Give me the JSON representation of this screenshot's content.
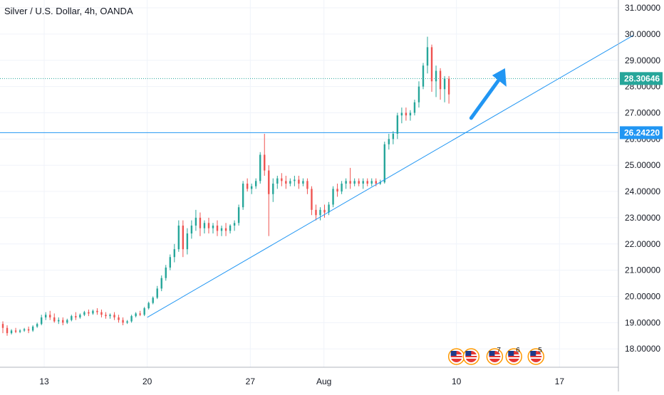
{
  "chart_data": {
    "type": "candlestick",
    "title": "Silver / U.S. Dollar, 4h, OANDA",
    "x_tick_labels": [
      "13",
      "20",
      "27",
      "Aug",
      "10",
      "17"
    ],
    "y_tick_labels": [
      "18.00000",
      "19.00000",
      "20.00000",
      "21.00000",
      "22.00000",
      "23.00000",
      "24.00000",
      "25.00000",
      "26.00000",
      "27.00000",
      "28.00000",
      "29.00000",
      "30.00000",
      "31.00000"
    ],
    "ylim": [
      17.3,
      31.3
    ],
    "x_range": [
      "Jul 10",
      "Aug 22"
    ],
    "price_label": "28.30646",
    "price_label_value": 28.30646,
    "level_label": "26.24220",
    "level_value": 26.2422,
    "trendline": {
      "start": {
        "date": "Jul 20",
        "price": 19.2
      },
      "end": {
        "date": "Aug 22",
        "price": 29.95
      }
    },
    "arrow": {
      "from": {
        "date": "Aug 11",
        "price": 26.8
      },
      "to": {
        "date": "Aug 13.3",
        "price": 28.7
      }
    },
    "event_markers": [
      {
        "label": "",
        "date": "Aug 10"
      },
      {
        "label": "",
        "date": "Aug 11"
      },
      {
        "label": "7",
        "date": "Aug 12.6"
      },
      {
        "label": "6",
        "date": "Aug 13.9"
      },
      {
        "label": "5",
        "date": "Aug 15.4"
      }
    ],
    "candles": [
      {
        "o": 18.95,
        "h": 19.05,
        "c": 18.8,
        "l": 18.6
      },
      {
        "o": 18.8,
        "h": 18.9,
        "c": 18.6,
        "l": 18.5
      },
      {
        "o": 18.6,
        "h": 18.75,
        "c": 18.7,
        "l": 18.55
      },
      {
        "o": 18.7,
        "h": 18.8,
        "c": 18.65,
        "l": 18.6
      },
      {
        "o": 18.65,
        "h": 18.75,
        "c": 18.7,
        "l": 18.6
      },
      {
        "o": 18.7,
        "h": 18.8,
        "c": 18.75,
        "l": 18.65
      },
      {
        "o": 18.75,
        "h": 18.85,
        "c": 18.7,
        "l": 18.6
      },
      {
        "o": 18.7,
        "h": 18.9,
        "c": 18.85,
        "l": 18.65
      },
      {
        "o": 18.85,
        "h": 19.0,
        "c": 18.95,
        "l": 18.8
      },
      {
        "o": 18.95,
        "h": 19.3,
        "c": 19.2,
        "l": 18.9
      },
      {
        "o": 19.2,
        "h": 19.4,
        "c": 19.3,
        "l": 19.1
      },
      {
        "o": 19.3,
        "h": 19.45,
        "c": 19.2,
        "l": 19.1
      },
      {
        "o": 19.2,
        "h": 19.35,
        "c": 19.05,
        "l": 19.0
      },
      {
        "o": 19.05,
        "h": 19.2,
        "c": 19.1,
        "l": 18.95
      },
      {
        "o": 19.1,
        "h": 19.2,
        "c": 19.0,
        "l": 18.9
      },
      {
        "o": 19.0,
        "h": 19.15,
        "c": 19.1,
        "l": 18.95
      },
      {
        "o": 19.1,
        "h": 19.3,
        "c": 19.25,
        "l": 19.05
      },
      {
        "o": 19.25,
        "h": 19.4,
        "c": 19.2,
        "l": 19.1
      },
      {
        "o": 19.2,
        "h": 19.35,
        "c": 19.3,
        "l": 19.15
      },
      {
        "o": 19.3,
        "h": 19.45,
        "c": 19.4,
        "l": 19.25
      },
      {
        "o": 19.4,
        "h": 19.5,
        "c": 19.35,
        "l": 19.25
      },
      {
        "o": 19.35,
        "h": 19.5,
        "c": 19.45,
        "l": 19.3
      },
      {
        "o": 19.45,
        "h": 19.55,
        "c": 19.4,
        "l": 19.3
      },
      {
        "o": 19.4,
        "h": 19.5,
        "c": 19.3,
        "l": 19.2
      },
      {
        "o": 19.3,
        "h": 19.4,
        "c": 19.25,
        "l": 19.15
      },
      {
        "o": 19.25,
        "h": 19.35,
        "c": 19.3,
        "l": 19.15
      },
      {
        "o": 19.3,
        "h": 19.4,
        "c": 19.2,
        "l": 19.1
      },
      {
        "o": 19.2,
        "h": 19.3,
        "c": 19.1,
        "l": 19.0
      },
      {
        "o": 19.1,
        "h": 19.2,
        "c": 19.0,
        "l": 18.9
      },
      {
        "o": 19.0,
        "h": 19.1,
        "c": 19.05,
        "l": 18.95
      },
      {
        "o": 19.05,
        "h": 19.3,
        "c": 19.25,
        "l": 19.0
      },
      {
        "o": 19.25,
        "h": 19.4,
        "c": 19.35,
        "l": 19.2
      },
      {
        "o": 19.35,
        "h": 19.45,
        "c": 19.3,
        "l": 19.25
      },
      {
        "o": 19.3,
        "h": 19.6,
        "c": 19.55,
        "l": 19.25
      },
      {
        "o": 19.55,
        "h": 19.8,
        "c": 19.75,
        "l": 19.5
      },
      {
        "o": 19.75,
        "h": 20.0,
        "c": 19.95,
        "l": 19.7
      },
      {
        "o": 19.95,
        "h": 20.4,
        "c": 20.3,
        "l": 19.9
      },
      {
        "o": 20.3,
        "h": 20.8,
        "c": 20.7,
        "l": 20.2
      },
      {
        "o": 20.7,
        "h": 21.2,
        "c": 21.1,
        "l": 20.6
      },
      {
        "o": 21.1,
        "h": 21.6,
        "c": 21.5,
        "l": 21.0
      },
      {
        "o": 21.5,
        "h": 22.0,
        "c": 21.8,
        "l": 21.3
      },
      {
        "o": 21.8,
        "h": 22.9,
        "c": 22.7,
        "l": 21.7
      },
      {
        "o": 22.7,
        "h": 22.9,
        "c": 21.8,
        "l": 21.5
      },
      {
        "o": 21.8,
        "h": 22.6,
        "c": 22.4,
        "l": 21.6
      },
      {
        "o": 22.4,
        "h": 22.9,
        "c": 22.7,
        "l": 22.2
      },
      {
        "o": 22.7,
        "h": 23.3,
        "c": 23.0,
        "l": 22.5
      },
      {
        "o": 23.0,
        "h": 23.2,
        "c": 22.6,
        "l": 22.3
      },
      {
        "o": 22.6,
        "h": 22.9,
        "c": 22.8,
        "l": 22.4
      },
      {
        "o": 22.8,
        "h": 23.0,
        "c": 22.6,
        "l": 22.4
      },
      {
        "o": 22.6,
        "h": 22.8,
        "c": 22.7,
        "l": 22.4
      },
      {
        "o": 22.7,
        "h": 22.9,
        "c": 22.5,
        "l": 22.3
      },
      {
        "o": 22.5,
        "h": 22.7,
        "c": 22.6,
        "l": 22.3
      },
      {
        "o": 22.6,
        "h": 22.8,
        "c": 22.5,
        "l": 22.3
      },
      {
        "o": 22.5,
        "h": 22.75,
        "c": 22.7,
        "l": 22.4
      },
      {
        "o": 22.7,
        "h": 22.9,
        "c": 22.8,
        "l": 22.5
      },
      {
        "o": 22.8,
        "h": 23.5,
        "c": 23.4,
        "l": 22.7
      },
      {
        "o": 23.4,
        "h": 24.4,
        "c": 24.3,
        "l": 23.3
      },
      {
        "o": 24.3,
        "h": 24.5,
        "c": 24.1,
        "l": 24.0
      },
      {
        "o": 24.1,
        "h": 24.3,
        "c": 24.2,
        "l": 23.9
      },
      {
        "o": 24.2,
        "h": 24.5,
        "c": 24.4,
        "l": 24.1
      },
      {
        "o": 24.4,
        "h": 25.5,
        "c": 25.4,
        "l": 24.3
      },
      {
        "o": 25.4,
        "h": 26.2,
        "c": 24.8,
        "l": 24.6
      },
      {
        "o": 24.8,
        "h": 25.0,
        "c": 23.9,
        "l": 22.3
      },
      {
        "o": 23.9,
        "h": 24.5,
        "c": 24.3,
        "l": 23.6
      },
      {
        "o": 24.3,
        "h": 24.6,
        "c": 24.5,
        "l": 24.1
      },
      {
        "o": 24.5,
        "h": 24.7,
        "c": 24.4,
        "l": 24.2
      },
      {
        "o": 24.4,
        "h": 24.6,
        "c": 24.3,
        "l": 24.1
      },
      {
        "o": 24.3,
        "h": 24.5,
        "c": 24.4,
        "l": 24.2
      },
      {
        "o": 24.4,
        "h": 24.6,
        "c": 24.45,
        "l": 24.2
      },
      {
        "o": 24.45,
        "h": 24.6,
        "c": 24.3,
        "l": 24.1
      },
      {
        "o": 24.3,
        "h": 24.5,
        "c": 24.4,
        "l": 24.2
      },
      {
        "o": 24.4,
        "h": 24.5,
        "c": 24.1,
        "l": 23.9
      },
      {
        "o": 24.1,
        "h": 24.2,
        "c": 23.3,
        "l": 23.1
      },
      {
        "o": 23.3,
        "h": 23.5,
        "c": 23.1,
        "l": 22.9
      },
      {
        "o": 23.1,
        "h": 23.4,
        "c": 23.3,
        "l": 22.9
      },
      {
        "o": 23.3,
        "h": 23.5,
        "c": 23.2,
        "l": 23.0
      },
      {
        "o": 23.2,
        "h": 23.6,
        "c": 23.5,
        "l": 23.1
      },
      {
        "o": 23.5,
        "h": 24.2,
        "c": 24.1,
        "l": 23.4
      },
      {
        "o": 24.1,
        "h": 24.3,
        "c": 24.0,
        "l": 23.8
      },
      {
        "o": 24.0,
        "h": 24.4,
        "c": 24.3,
        "l": 23.9
      },
      {
        "o": 24.3,
        "h": 24.5,
        "c": 24.4,
        "l": 24.1
      },
      {
        "o": 24.4,
        "h": 24.9,
        "c": 24.3,
        "l": 24.1
      },
      {
        "o": 24.3,
        "h": 24.5,
        "c": 24.4,
        "l": 24.2
      },
      {
        "o": 24.4,
        "h": 24.5,
        "c": 24.3,
        "l": 24.2
      },
      {
        "o": 24.3,
        "h": 24.5,
        "c": 24.4,
        "l": 24.1
      },
      {
        "o": 24.4,
        "h": 24.5,
        "c": 24.3,
        "l": 24.2
      },
      {
        "o": 24.3,
        "h": 24.5,
        "c": 24.4,
        "l": 24.2
      },
      {
        "o": 24.4,
        "h": 24.5,
        "c": 24.3,
        "l": 24.2
      },
      {
        "o": 24.3,
        "h": 24.45,
        "c": 24.35,
        "l": 24.25
      },
      {
        "o": 24.35,
        "h": 25.9,
        "c": 25.8,
        "l": 24.3
      },
      {
        "o": 25.8,
        "h": 26.2,
        "c": 26.0,
        "l": 25.6
      },
      {
        "o": 26.0,
        "h": 26.3,
        "c": 26.2,
        "l": 25.8
      },
      {
        "o": 26.2,
        "h": 27.0,
        "c": 26.9,
        "l": 26.0
      },
      {
        "o": 26.9,
        "h": 27.2,
        "c": 27.0,
        "l": 26.6
      },
      {
        "o": 27.0,
        "h": 27.2,
        "c": 26.9,
        "l": 26.7
      },
      {
        "o": 26.9,
        "h": 27.1,
        "c": 27.0,
        "l": 26.7
      },
      {
        "o": 27.0,
        "h": 27.5,
        "c": 27.4,
        "l": 26.9
      },
      {
        "o": 27.4,
        "h": 28.2,
        "c": 28.0,
        "l": 27.2
      },
      {
        "o": 28.0,
        "h": 28.9,
        "c": 28.8,
        "l": 27.9
      },
      {
        "o": 28.8,
        "h": 29.9,
        "c": 29.5,
        "l": 28.5
      },
      {
        "o": 29.5,
        "h": 29.6,
        "c": 28.2,
        "l": 27.8
      },
      {
        "o": 28.2,
        "h": 28.8,
        "c": 28.6,
        "l": 27.6
      },
      {
        "o": 28.6,
        "h": 28.7,
        "c": 27.9,
        "l": 27.5
      },
      {
        "o": 27.9,
        "h": 28.4,
        "c": 28.3,
        "l": 27.4
      },
      {
        "o": 28.3,
        "h": 28.4,
        "c": 27.7,
        "l": 27.35
      }
    ]
  },
  "colors": {
    "up": "#26a69a",
    "down": "#ef5350",
    "line": "#2196f3",
    "axis_text": "#131722",
    "grid": "#f0f3fa"
  }
}
